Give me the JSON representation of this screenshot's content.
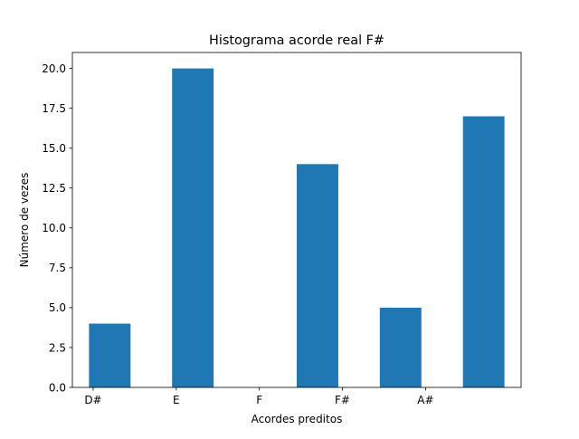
{
  "chart_data": {
    "type": "bar",
    "title": "Histograma acorde real F#",
    "xlabel": "Acordes preditos",
    "ylabel": "Número de vezes",
    "x_tick_labels": [
      "D#",
      "E",
      "F",
      "F#",
      "A#"
    ],
    "bars": [
      {
        "x": 0.2,
        "value": 4
      },
      {
        "x": 1.2,
        "value": 20
      },
      {
        "x": 2.7,
        "value": 14
      },
      {
        "x": 3.7,
        "value": 5
      },
      {
        "x": 4.7,
        "value": 17
      }
    ],
    "bar_width": 0.5,
    "ylim": [
      0,
      21
    ],
    "xlim": [
      -0.25,
      5.15
    ],
    "y_ticks": [
      0.0,
      2.5,
      5.0,
      7.5,
      10.0,
      12.5,
      15.0,
      17.5,
      20.0
    ],
    "y_tick_labels": [
      "0.0",
      "2.5",
      "5.0",
      "7.5",
      "10.0",
      "12.5",
      "15.0",
      "17.5",
      "20.0"
    ],
    "grid": false,
    "legend": "none",
    "bar_color": "#1f77b4"
  }
}
